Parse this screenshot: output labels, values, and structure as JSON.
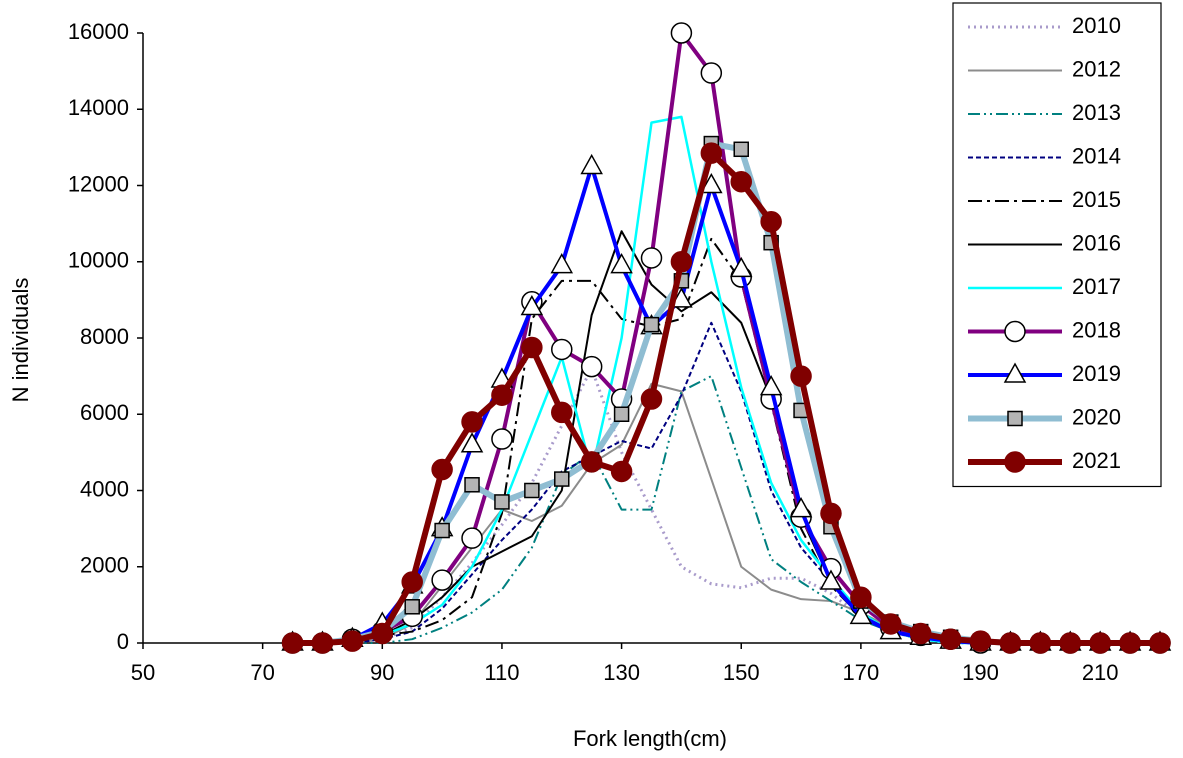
{
  "chart_data": {
    "type": "line",
    "x_label": "Fork length(cm)",
    "y_label": "N individuals",
    "x": [
      75,
      80,
      85,
      90,
      95,
      100,
      105,
      110,
      115,
      120,
      125,
      130,
      135,
      140,
      145,
      150,
      155,
      160,
      165,
      170,
      175,
      180,
      185,
      190,
      195,
      200,
      205,
      210,
      215,
      220
    ],
    "xlim": [
      50,
      220
    ],
    "xticks": [
      50,
      70,
      90,
      110,
      130,
      150,
      170,
      190,
      210
    ],
    "ylim": [
      0,
      16000
    ],
    "yticks": [
      0,
      2000,
      4000,
      6000,
      8000,
      10000,
      12000,
      14000,
      16000
    ],
    "legend": "upper right",
    "series": [
      {
        "name": "2010",
        "color": "#a99bcb",
        "dash": "2,4",
        "width": 3,
        "marker": "none",
        "values": [
          0,
          0,
          0,
          100,
          400,
          1200,
          2100,
          3100,
          4200,
          5700,
          7200,
          5000,
          3500,
          2000,
          1550,
          1450,
          1700,
          1700,
          1300,
          700,
          300,
          100,
          0,
          0,
          0,
          0,
          0,
          0,
          0,
          0
        ]
      },
      {
        "name": "2012",
        "color": "#8c8c8c",
        "dash": "none",
        "width": 2,
        "marker": "none",
        "values": [
          0,
          0,
          0,
          100,
          500,
          1500,
          2500,
          3500,
          3200,
          3600,
          4700,
          5200,
          6800,
          6600,
          4300,
          2000,
          1400,
          1150,
          1100,
          800,
          400,
          150,
          0,
          0,
          0,
          0,
          0,
          0,
          0,
          0
        ]
      },
      {
        "name": "2013",
        "color": "#008080",
        "dash": "12,4,2,4,2,4",
        "width": 2,
        "marker": "none",
        "values": [
          0,
          0,
          0,
          0,
          100,
          400,
          800,
          1400,
          2500,
          4400,
          5000,
          3500,
          3500,
          6600,
          7000,
          4600,
          2200,
          1600,
          1100,
          600,
          300,
          100,
          0,
          0,
          0,
          0,
          0,
          0,
          0,
          0
        ]
      },
      {
        "name": "2014",
        "color": "#000080",
        "dash": "5,3",
        "width": 2,
        "marker": "none",
        "values": [
          0,
          0,
          0,
          100,
          300,
          900,
          1800,
          2700,
          3500,
          4500,
          4900,
          5300,
          5100,
          6500,
          8400,
          6600,
          4000,
          2500,
          1600,
          700,
          300,
          100,
          0,
          0,
          0,
          0,
          0,
          0,
          0,
          0
        ]
      },
      {
        "name": "2015",
        "color": "#000000",
        "dash": "14,5,3,5",
        "width": 2,
        "marker": "none",
        "values": [
          0,
          0,
          0,
          200,
          300,
          600,
          1200,
          3400,
          8500,
          9500,
          9500,
          8500,
          8300,
          8500,
          10600,
          9500,
          6300,
          3000,
          1500,
          700,
          300,
          100,
          0,
          0,
          0,
          0,
          0,
          0,
          0,
          0
        ]
      },
      {
        "name": "2016",
        "color": "#000000",
        "dash": "none",
        "width": 2,
        "marker": "none",
        "values": [
          0,
          0,
          50,
          200,
          600,
          1200,
          2000,
          2400,
          2800,
          4000,
          8600,
          10800,
          9400,
          8700,
          9200,
          8400,
          6400,
          3300,
          1600,
          800,
          300,
          100,
          0,
          0,
          0,
          0,
          0,
          0,
          0,
          0
        ]
      },
      {
        "name": "2017",
        "color": "#00ffff",
        "dash": "none",
        "width": 2.5,
        "marker": "none",
        "values": [
          0,
          0,
          50,
          200,
          500,
          1000,
          2000,
          3500,
          5500,
          7500,
          4500,
          8000,
          13650,
          13800,
          10000,
          6700,
          4200,
          2700,
          1700,
          800,
          300,
          100,
          0,
          0,
          0,
          0,
          0,
          0,
          0,
          0
        ]
      },
      {
        "name": "2018",
        "color": "#800080",
        "dash": "none",
        "width": 4,
        "marker": "circle",
        "marker_fill": "#ffffff",
        "values": [
          0,
          0,
          100,
          300,
          700,
          1650,
          2750,
          5350,
          8950,
          7700,
          7250,
          6400,
          10100,
          16000,
          14950,
          9600,
          6400,
          3300,
          1950,
          1000,
          400,
          200,
          100,
          0,
          0,
          0,
          0,
          0,
          0,
          0
        ]
      },
      {
        "name": "2019",
        "color": "#0000ff",
        "dash": "none",
        "width": 4,
        "marker": "triangle",
        "marker_fill": "#ffffff",
        "values": [
          0,
          0,
          100,
          500,
          1500,
          3000,
          5200,
          6900,
          8800,
          9900,
          12500,
          9900,
          8300,
          9000,
          12000,
          9800,
          6700,
          3500,
          1600,
          700,
          300,
          150,
          50,
          0,
          0,
          0,
          0,
          0,
          0,
          0
        ]
      },
      {
        "name": "2020",
        "color": "#8fbdd2",
        "dash": "none",
        "width": 6,
        "marker": "square",
        "marker_fill": "#b4b4b4",
        "values": [
          0,
          0,
          100,
          300,
          950,
          2950,
          4150,
          3700,
          4000,
          4300,
          4800,
          6000,
          8350,
          9500,
          13100,
          12950,
          10500,
          6100,
          3050,
          1100,
          550,
          300,
          150,
          50,
          0,
          0,
          0,
          0,
          0,
          0
        ]
      },
      {
        "name": "2021",
        "color": "#800000",
        "dash": "none",
        "width": 6,
        "marker": "circle",
        "marker_fill": "#800000",
        "values": [
          0,
          0,
          50,
          250,
          1600,
          4550,
          5800,
          6500,
          7750,
          6050,
          4750,
          4500,
          6400,
          10000,
          12850,
          12100,
          11050,
          7000,
          3400,
          1200,
          500,
          250,
          100,
          50,
          0,
          0,
          0,
          0,
          0,
          0
        ]
      }
    ]
  }
}
